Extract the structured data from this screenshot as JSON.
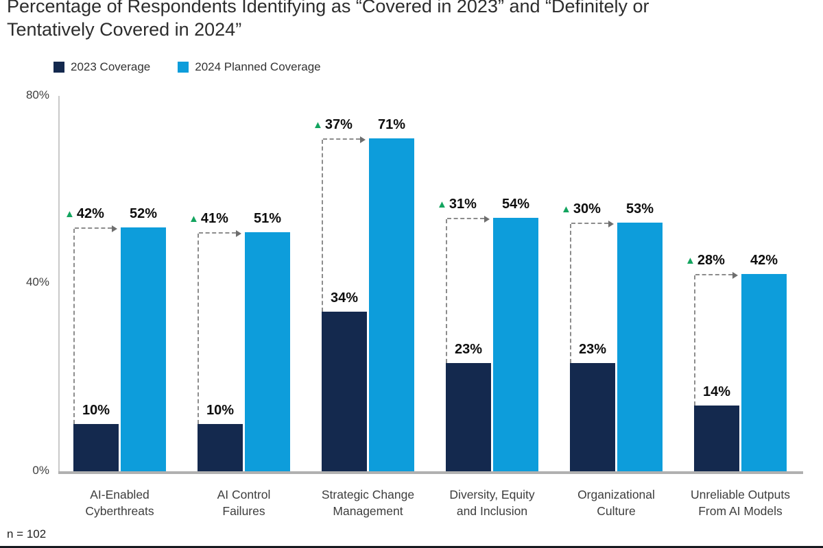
{
  "title_display": "Percentage of Respondents Identifying as “Covered in 2023” and “Definitely or\nTentatively Covered in 2024”",
  "note": "n = 102",
  "chart_data": {
    "type": "bar",
    "title": "Percentage of Respondents Identifying as “Covered in 2023” and “Definitely or Tentatively Covered in 2024”",
    "categories": [
      "AI-Enabled\nCyberthreats",
      "AI Control\nFailures",
      "Strategic Change\nManagement",
      "Diversity, Equity\nand Inclusion",
      "Organizational\nCulture",
      "Unreliable Outputs\nFrom AI Models"
    ],
    "series": [
      {
        "name": "2023 Coverage",
        "color": "#14294E",
        "values": [
          10,
          10,
          34,
          23,
          23,
          14
        ]
      },
      {
        "name": "2024 Planned Coverage",
        "color": "#0D9DDB",
        "values": [
          52,
          51,
          71,
          54,
          53,
          42
        ]
      }
    ],
    "deltas": {
      "marker": "▲",
      "color": "#13A45F",
      "values": [
        42,
        41,
        37,
        31,
        30,
        28
      ]
    },
    "value_label_format": "{v}%",
    "ylabel": "",
    "ylim": [
      0,
      80
    ],
    "yticks": [
      "80%",
      "40%",
      "0%"
    ],
    "grid": false,
    "legend_position": "top-left",
    "note": "n = 102"
  }
}
